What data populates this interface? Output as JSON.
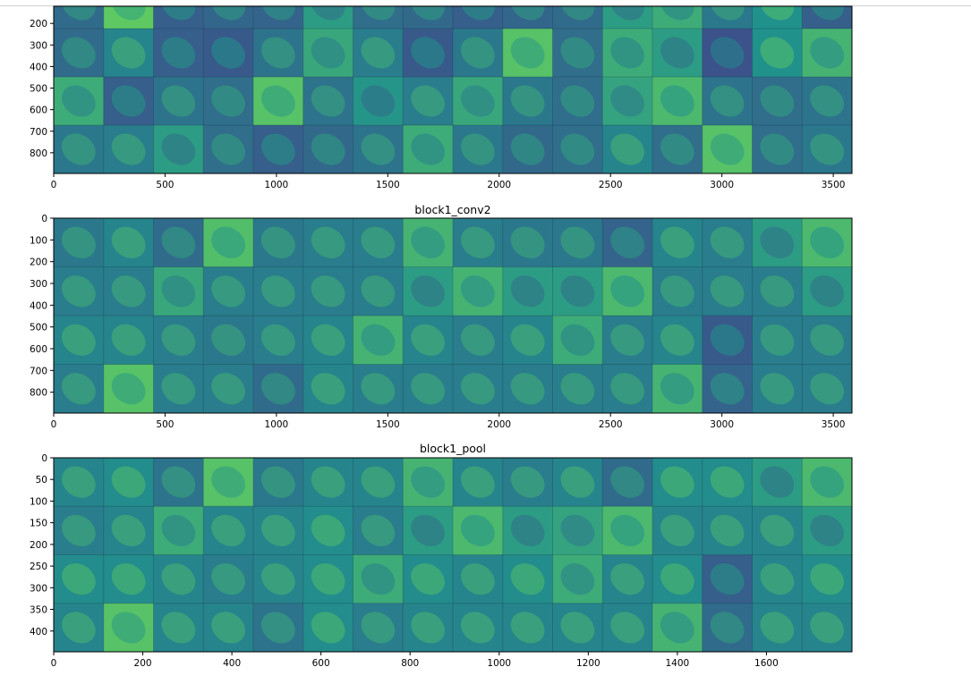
{
  "colormap": "viridis",
  "chart_data": [
    {
      "type": "heatmap",
      "title": "",
      "grid_rows": 4,
      "grid_cols": 16,
      "x_range": [
        0,
        3584
      ],
      "y_range": [
        0,
        896
      ],
      "x_ticks": [
        0,
        500,
        1000,
        1500,
        2000,
        2500,
        3000,
        3500
      ],
      "y_ticks": [
        200,
        300,
        400,
        500,
        600,
        700,
        800
      ],
      "cells": [
        [
          0.35,
          0.75,
          0.3,
          0.33,
          0.32,
          0.55,
          0.36,
          0.34,
          0.3,
          0.33,
          0.35,
          0.55,
          0.62,
          0.4,
          0.5,
          0.3
        ],
        [
          0.35,
          0.45,
          0.3,
          0.28,
          0.38,
          0.6,
          0.42,
          0.28,
          0.4,
          0.72,
          0.36,
          0.62,
          0.55,
          0.25,
          0.5,
          0.65
        ],
        [
          0.62,
          0.3,
          0.38,
          0.36,
          0.72,
          0.38,
          0.52,
          0.42,
          0.6,
          0.4,
          0.36,
          0.58,
          0.68,
          0.38,
          0.36,
          0.38
        ],
        [
          0.4,
          0.42,
          0.55,
          0.36,
          0.3,
          0.34,
          0.38,
          0.62,
          0.4,
          0.34,
          0.36,
          0.45,
          0.36,
          0.72,
          0.36,
          0.4
        ]
      ]
    },
    {
      "type": "heatmap",
      "title": "block1_conv2",
      "grid_rows": 4,
      "grid_cols": 16,
      "x_range": [
        0,
        3584
      ],
      "y_range": [
        0,
        896
      ],
      "x_ticks": [
        0,
        500,
        1000,
        1500,
        2000,
        2500,
        3000,
        3500
      ],
      "y_ticks": [
        0,
        100,
        200,
        300,
        400,
        500,
        600,
        700,
        800
      ],
      "cells": [
        [
          0.4,
          0.45,
          0.35,
          0.7,
          0.4,
          0.42,
          0.42,
          0.65,
          0.42,
          0.4,
          0.4,
          0.32,
          0.45,
          0.42,
          0.55,
          0.68
        ],
        [
          0.42,
          0.42,
          0.6,
          0.42,
          0.42,
          0.42,
          0.42,
          0.55,
          0.65,
          0.55,
          0.55,
          0.68,
          0.42,
          0.42,
          0.42,
          0.55
        ],
        [
          0.45,
          0.45,
          0.42,
          0.4,
          0.42,
          0.45,
          0.65,
          0.45,
          0.42,
          0.45,
          0.62,
          0.42,
          0.45,
          0.28,
          0.42,
          0.42
        ],
        [
          0.42,
          0.72,
          0.42,
          0.42,
          0.35,
          0.45,
          0.42,
          0.42,
          0.42,
          0.42,
          0.42,
          0.42,
          0.65,
          0.32,
          0.42,
          0.42
        ]
      ]
    },
    {
      "type": "heatmap",
      "title": "block1_pool",
      "grid_rows": 4,
      "grid_cols": 16,
      "x_range": [
        0,
        1792
      ],
      "y_range": [
        0,
        448
      ],
      "x_ticks": [
        0,
        200,
        400,
        600,
        800,
        1000,
        1200,
        1400,
        1600
      ],
      "y_ticks": [
        0,
        50,
        100,
        150,
        200,
        250,
        300,
        350,
        400
      ],
      "cells": [
        [
          0.45,
          0.48,
          0.38,
          0.72,
          0.4,
          0.45,
          0.45,
          0.65,
          0.45,
          0.42,
          0.45,
          0.35,
          0.48,
          0.48,
          0.55,
          0.68
        ],
        [
          0.42,
          0.45,
          0.62,
          0.45,
          0.45,
          0.48,
          0.42,
          0.55,
          0.68,
          0.55,
          0.58,
          0.68,
          0.45,
          0.45,
          0.45,
          0.55
        ],
        [
          0.48,
          0.48,
          0.45,
          0.42,
          0.45,
          0.48,
          0.62,
          0.48,
          0.45,
          0.48,
          0.62,
          0.45,
          0.48,
          0.3,
          0.45,
          0.48
        ],
        [
          0.45,
          0.72,
          0.45,
          0.45,
          0.38,
          0.48,
          0.42,
          0.45,
          0.45,
          0.45,
          0.45,
          0.45,
          0.65,
          0.35,
          0.45,
          0.45
        ]
      ]
    }
  ]
}
